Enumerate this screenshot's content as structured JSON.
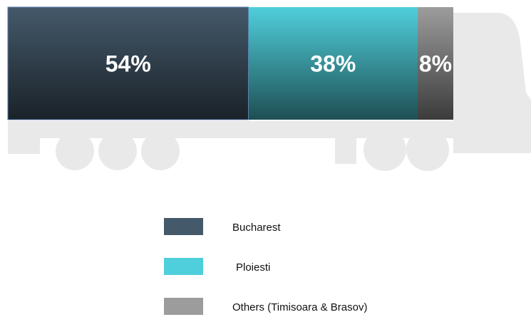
{
  "chart_data": {
    "type": "bar",
    "series": [
      {
        "name": "Bucharest",
        "color": "#44596a",
        "values": [
          54
        ],
        "value_labels": [
          "54%"
        ]
      },
      {
        "name": "Ploiesti",
        "color": "#4fcfdb",
        "values": [
          38
        ],
        "value_labels": [
          "38%"
        ]
      },
      {
        "name": "Others (Timisoara & Brasov)",
        "color": "#9c9c9c",
        "values": [
          8
        ],
        "value_labels": [
          "8%"
        ]
      }
    ]
  }
}
